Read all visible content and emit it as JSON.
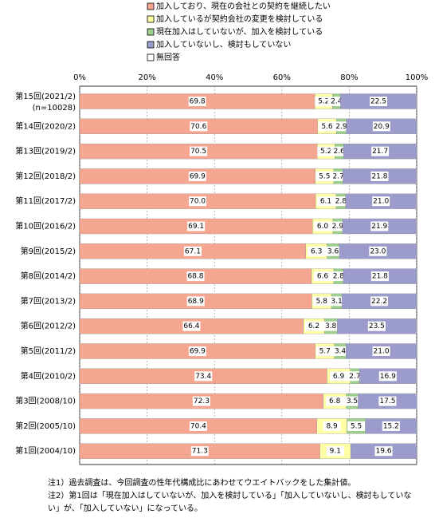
{
  "chart_data": {
    "type": "stacked-bar-horizontal",
    "categories": [
      "第15回(2021/2)",
      "第14回(2020/2)",
      "第13回(2019/2)",
      "第12回(2018/2)",
      "第11回(2017/2)",
      "第10回(2016/2)",
      "第9回(2015/2)",
      "第8回(2014/2)",
      "第7回(2013/2)",
      "第6回(2012/2)",
      "第5回(2011/2)",
      "第4回(2010/2)",
      "第3回(2008/10)",
      "第2回(2005/10)",
      "第1回(2004/10)"
    ],
    "sample_size_label": "(n=10028)",
    "series": [
      {
        "name": "加入しており、現在の会社との契約を継続したい",
        "color": "#f4a690",
        "values": [
          69.8,
          70.6,
          70.5,
          69.9,
          70,
          69.1,
          67.1,
          68.8,
          68.9,
          66.4,
          69.9,
          73.4,
          72.3,
          70.4,
          71.3
        ],
        "value_labels": [
          "69.8",
          "70.6",
          "70.5",
          "69.9",
          "70.0",
          "69.1",
          "67.1",
          "68.8",
          "68.9",
          "66.4",
          "69.9",
          "73.4",
          "72.3",
          "70.4",
          "71.3"
        ]
      },
      {
        "name": "加入しているが契約会社の変更を検討している",
        "color": "#ffffa6",
        "values": [
          5.2,
          5.6,
          5.2,
          5.5,
          6.1,
          6,
          6.3,
          6.6,
          5.8,
          6.2,
          5.7,
          6.9,
          6.8,
          8.9,
          9.1
        ],
        "value_labels": [
          "5.2",
          "5.6",
          "5.2",
          "5.5",
          "6.1",
          "6.0",
          "6.3",
          "6.6",
          "5.8",
          "6.2",
          "5.7",
          "6.9",
          "6.8",
          "8.9",
          "9.1"
        ]
      },
      {
        "name": "現在加入はしていないが、加入を検討している",
        "color": "#9ccf8c",
        "values": [
          2.4,
          2.9,
          2.6,
          2.7,
          2.8,
          2.9,
          3.6,
          2.8,
          3.1,
          3.8,
          3.4,
          2.7,
          3.5,
          5.5,
          null
        ],
        "value_labels": [
          "2.4",
          "2.9",
          "2.6",
          "2.7",
          "2.8",
          "2.9",
          "3.6",
          "2.8",
          "3.1",
          "3.8",
          "3.4",
          "2.7",
          "3.5",
          "5.5",
          null
        ]
      },
      {
        "name": "加入していないし、検討もしていない",
        "color": "#9c9ccc",
        "values": [
          22.5,
          20.9,
          21.7,
          21.8,
          21,
          21.9,
          23,
          21.8,
          22.2,
          23.5,
          21,
          16.9,
          17.5,
          15.2,
          19.6
        ],
        "value_labels": [
          "22.5",
          "20.9",
          "21.7",
          "21.8",
          "21.0",
          "21.9",
          "23.0",
          "21.8",
          "22.2",
          "23.5",
          "21.0",
          "16.9",
          "17.5",
          "15.2",
          "19.6"
        ]
      },
      {
        "name": "無回答",
        "color": "#ffffff",
        "values": [
          0.1,
          0,
          0,
          0.1,
          0.1,
          0.1,
          0,
          0,
          0,
          0.1,
          0,
          0.1,
          0,
          0,
          0
        ]
      }
    ],
    "xlim": [
      0,
      100
    ],
    "xticks": [
      {
        "value": 0,
        "label": "0%"
      },
      {
        "value": 20,
        "label": "20%"
      },
      {
        "value": 40,
        "label": "40%"
      },
      {
        "value": 60,
        "label": "60%"
      },
      {
        "value": 80,
        "label": "80%"
      },
      {
        "value": 100,
        "label": "100%"
      }
    ],
    "grid": true,
    "notes": [
      "注1）過去調査は、今回調査の性年代構成比にあわせてウエイトバックをした集計値。",
      "注2）第1回は「現在加入はしていないが、加入を検討している」「加入していないし、検討もしていない」が、「加入していない」になっている。"
    ]
  }
}
